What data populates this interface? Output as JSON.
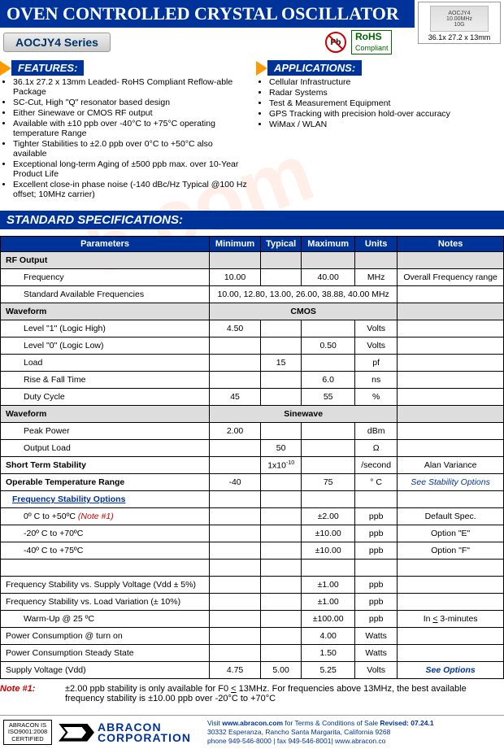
{
  "title": "OVEN CONTROLLED CRYSTAL OSCILLATOR",
  "series": "AOCJY4 Series",
  "chip": {
    "label1": "AOCJY4",
    "label2": "10.00MHz",
    "label3": "10G",
    "dims": "36.1x 27.2 x 13mm"
  },
  "pb": "Pb",
  "rohs_top": "RoHS",
  "rohs_bot": "Compliant",
  "features_label": "FEATURES:",
  "features": [
    "36.1x 27.2 x 13mm   Leaded- RoHS Compliant Reflow-able Package",
    "SC-Cut, High \"Q\" resonator based design",
    "Either Sinewave or CMOS RF output",
    "Available with ±10 ppb over -40°C to +75°C operating temperature Range",
    "Tighter Stabilities to ±2.0 ppb over 0°C to +50°C also available",
    "Exceptional long-term Aging of ±500 ppb max. over 10-Year Product Life",
    "Excellent close-in phase noise (-140 dBc/Hz Typical @100 Hz offset; 10MHz carrier)"
  ],
  "apps_label": "APPLICATIONS:",
  "apps": [
    "Cellular Infrastructure",
    "Radar Systems",
    "Test & Measurement Equipment",
    "GPS Tracking with precision hold-over accuracy",
    "WiMax / WLAN"
  ],
  "spec_header": "STANDARD SPECIFICATIONS:",
  "columns": [
    "Parameters",
    "Minimum",
    "Typical",
    "Maximum",
    "Units",
    "Notes"
  ],
  "rows": [
    {
      "type": "gray",
      "p": "RF Output"
    },
    {
      "type": "indent",
      "p": "Frequency",
      "min": "10.00",
      "max": "40.00",
      "u": "MHz",
      "n": "Overall Frequency range"
    },
    {
      "type": "indent-span",
      "p": "Standard Available Frequencies",
      "span": "10.00, 12.80, 13.00, 26.00, 38.88, 40.00 MHz"
    },
    {
      "type": "gray-span",
      "p": "Waveform",
      "span": "CMOS"
    },
    {
      "type": "indent",
      "p": "Level \"1\" (Logic High)",
      "min": "4.50",
      "u": "Volts"
    },
    {
      "type": "indent",
      "p": "Level \"0\" (Logic Low)",
      "max": "0.50",
      "u": "Volts"
    },
    {
      "type": "indent",
      "p": "Load",
      "typ": "15",
      "u": "pf"
    },
    {
      "type": "indent",
      "p": "Rise & Fall Time",
      "max": "6.0",
      "u": "ns"
    },
    {
      "type": "indent",
      "p": "Duty Cycle",
      "min": "45",
      "max": "55",
      "u": "%"
    },
    {
      "type": "gray-span",
      "p": "Waveform",
      "span": "Sinewave"
    },
    {
      "type": "indent",
      "p": "Peak Power",
      "min": "2.00",
      "u": "dBm"
    },
    {
      "type": "indent",
      "p": "Output Load",
      "typ": "50",
      "u": "Ω"
    },
    {
      "type": "bold",
      "p": "Short Term Stability",
      "typ": "1x10<sup>-10</sup>",
      "u": "/second",
      "n": "Alan Variance"
    },
    {
      "type": "bold",
      "p": "Operable Temperature Range",
      "min": "-40",
      "max": "75",
      "u": "° C",
      "n": "<span class='blue italic'>See Stability Options</span>"
    },
    {
      "type": "sub-blue",
      "p": "Frequency Stability Options"
    },
    {
      "type": "indent",
      "p": "0º C to +50ºC   <span class='red italic'>(Note #1)</span>",
      "max": "±2.00",
      "u": "ppb",
      "n": "Default Spec."
    },
    {
      "type": "indent",
      "p": "-20º C to +70ºC",
      "max": "±10.00",
      "u": "ppb",
      "n": "Option \"E\""
    },
    {
      "type": "indent",
      "p": "-40º C to +75ºC",
      "max": "±10.00",
      "u": "ppb",
      "n": "Option \"F\""
    },
    {
      "type": "blank"
    },
    {
      "type": "plain",
      "p": "Frequency Stability vs. Supply Voltage (Vdd ± 5%)",
      "max": "±1.00",
      "u": "ppb"
    },
    {
      "type": "plain",
      "p": "Frequency Stability vs. Load Variation (± 10%)",
      "max": "±1.00",
      "u": "ppb"
    },
    {
      "type": "indent",
      "p": "Warm-Up @ 25 ºC",
      "max": "±100.00",
      "u": "ppb",
      "n": "In <u>&lt;</u> 3-minutes"
    },
    {
      "type": "plain",
      "p": "Power Consumption @ turn on",
      "max": "4.00",
      "u": "Watts"
    },
    {
      "type": "plain",
      "p": "Power Consumption Steady State",
      "max": "1.50",
      "u": "Watts"
    },
    {
      "type": "plain",
      "p": "Supply Voltage (Vdd)",
      "min": "4.75",
      "typ": "5.00",
      "max": "5.25",
      "u": "Volts",
      "n": "<span class='blue italic bold'>See Options</span>"
    }
  ],
  "note1_label": "Note #1:",
  "note1_text": "±2.00 ppb stability is only available for F0 <u>&lt;</u> 13MHz.  For frequencies above 13MHz, the best available frequency stability is ±10.00 ppb over -20°C to +70°C",
  "footer": {
    "cert": "ABRACON IS\nISO9001:2008\nCERTIFIED",
    "logo1": "ABRACON",
    "logo2": "CORPORATION",
    "line1": "Visit <b>www.abracon.com</b> for Terms & Conditions of Sale  <b>Revised: 07.24.1</b>",
    "line2": "30332 Esperanza, Rancho Santa Margarita, California 9268",
    "line3": "phone 949-546-8000 |  fax 949-546-8001|  www.abracon.co"
  }
}
